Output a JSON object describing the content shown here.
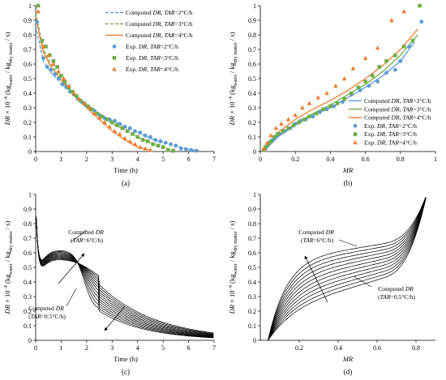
{
  "chart_data": [
    {
      "panel": "(a)",
      "type": "scatter",
      "xlabel": "Time (h)",
      "ylabel": "DR × 10⁻⁴ (kg_water / kg_dry matter / s)",
      "ylabel_parts": {
        "a": "DR",
        "b": " × 10",
        "c": "−4",
        "d": " (kg",
        "e": "water",
        "f": " / kg",
        "g": "dry matter",
        "h": " / s)"
      },
      "xlim": [
        0,
        7
      ],
      "ylim": [
        0,
        1
      ],
      "xticks": [
        "0",
        "1",
        "2",
        "3",
        "4",
        "5",
        "6",
        "7"
      ],
      "yticks": [
        "0",
        "0.1",
        "0.2",
        "0.3",
        "0.4",
        "0.5",
        "0.6",
        "0.7",
        "0.8",
        "0.9",
        "1"
      ],
      "grid": false,
      "legend_position": "top-right",
      "legend": [
        {
          "pre": "Computed ",
          "it1": "DR",
          "mid": ", ",
          "it2": "TAR",
          "post": "=2°C/h",
          "marker": "dashed-line",
          "color": "#5b9bd5"
        },
        {
          "pre": "Computed ",
          "it1": "DR",
          "mid": ", ",
          "it2": "TAR",
          "post": "=3°C/h",
          "marker": "dashed-line",
          "color": "#70ad47"
        },
        {
          "pre": "Computed ",
          "it1": "DR",
          "mid": ", ",
          "it2": "TAR",
          "post": "=4°C/h",
          "marker": "solid-line",
          "color": "#ed7d31"
        },
        {
          "pre": "Exp. ",
          "it1": "DR",
          "mid": ", ",
          "it2": "TAR",
          "post": "=2°C/h",
          "marker": "circle",
          "color": "#5b9bd5"
        },
        {
          "pre": "Exp. ",
          "it1": "DR",
          "mid": ", ",
          "it2": "TAR",
          "post": "=3°C/h",
          "marker": "square",
          "color": "#70ad47"
        },
        {
          "pre": "Exp. ",
          "it1": "DR",
          "mid": ", ",
          "it2": "TAR",
          "post": "=4°C/h",
          "marker": "triangle",
          "color": "#ed7d31"
        }
      ],
      "series": [
        {
          "marker": "circle",
          "color": "#5b9bd5",
          "x": [
            0.05,
            0.3,
            0.45,
            0.6,
            0.75,
            0.9,
            1.05,
            1.2,
            1.35,
            1.5,
            1.65,
            1.8,
            1.95,
            2.1,
            2.3,
            2.5,
            2.7,
            2.9,
            3.1,
            3.3,
            3.5,
            3.7,
            3.9,
            4.1,
            4.3,
            4.5,
            4.7,
            4.9,
            5.1,
            5.3,
            5.5,
            5.7,
            5.9,
            6.1,
            6.3
          ],
          "y": [
            0.89,
            0.64,
            0.58,
            0.56,
            0.53,
            0.5,
            0.46,
            0.44,
            0.41,
            0.39,
            0.36,
            0.34,
            0.32,
            0.3,
            0.28,
            0.25,
            0.23,
            0.22,
            0.21,
            0.19,
            0.17,
            0.16,
            0.14,
            0.13,
            0.11,
            0.1,
            0.08,
            0.07,
            0.06,
            0.05,
            0.04,
            0.02,
            0.015,
            0.01,
            0.005
          ]
        },
        {
          "marker": "square",
          "color": "#70ad47",
          "x": [
            0.1,
            0.25,
            0.4,
            0.55,
            0.7,
            0.85,
            1.0,
            1.15,
            1.3,
            1.45,
            1.6,
            1.75,
            1.9,
            2.05,
            2.2,
            2.4,
            2.6,
            2.8,
            3.0,
            3.2,
            3.4,
            3.6,
            3.8,
            4.0,
            4.2,
            4.4,
            4.6,
            4.8,
            5.0,
            5.2,
            5.4
          ],
          "y": [
            1.0,
            0.76,
            0.72,
            0.66,
            0.62,
            0.58,
            0.52,
            0.48,
            0.44,
            0.41,
            0.38,
            0.35,
            0.33,
            0.31,
            0.29,
            0.26,
            0.24,
            0.22,
            0.2,
            0.18,
            0.16,
            0.14,
            0.12,
            0.1,
            0.08,
            0.07,
            0.05,
            0.04,
            0.03,
            0.01,
            0.005
          ]
        },
        {
          "marker": "triangle",
          "color": "#ed7d31",
          "x": [
            0.1,
            0.3,
            0.5,
            0.7,
            0.9,
            1.1,
            1.3,
            1.5,
            1.7,
            1.9,
            2.1,
            2.3,
            2.5,
            2.7,
            2.9,
            3.1,
            3.3,
            3.5,
            3.7,
            3.9,
            4.1,
            4.3,
            4.5
          ],
          "y": [
            0.96,
            0.72,
            0.66,
            0.6,
            0.55,
            0.5,
            0.45,
            0.4,
            0.36,
            0.33,
            0.3,
            0.26,
            0.23,
            0.2,
            0.17,
            0.14,
            0.12,
            0.09,
            0.07,
            0.05,
            0.03,
            0.02,
            0.01
          ]
        },
        {
          "marker": "dashed-line",
          "color": "#5b9bd5",
          "x": [
            0,
            0.3,
            0.6,
            1.0,
            1.5,
            2.0,
            2.5,
            3.0,
            3.5,
            4.0,
            4.5,
            5.0,
            5.5,
            6.0,
            6.4
          ],
          "y": [
            0.86,
            0.62,
            0.54,
            0.47,
            0.39,
            0.32,
            0.26,
            0.21,
            0.17,
            0.13,
            0.09,
            0.06,
            0.04,
            0.015,
            0.005
          ]
        },
        {
          "marker": "dashed-line",
          "color": "#70ad47",
          "x": [
            0,
            0.3,
            0.6,
            1.0,
            1.5,
            2.0,
            2.5,
            3.0,
            3.5,
            4.0,
            4.5,
            5.0,
            5.4
          ],
          "y": [
            0.95,
            0.7,
            0.6,
            0.5,
            0.4,
            0.32,
            0.25,
            0.19,
            0.15,
            0.1,
            0.06,
            0.03,
            0.01
          ]
        },
        {
          "marker": "solid-line",
          "color": "#ed7d31",
          "x": [
            0,
            0.3,
            0.6,
            1.0,
            1.5,
            2.0,
            2.5,
            3.0,
            3.5,
            4.0,
            4.5
          ],
          "y": [
            0.92,
            0.68,
            0.58,
            0.49,
            0.39,
            0.3,
            0.22,
            0.14,
            0.08,
            0.03,
            0.01
          ]
        }
      ]
    },
    {
      "panel": "(b)",
      "type": "scatter",
      "xlabel": "MR",
      "ylabel": "DR × 10⁻⁴ (kg_water / kg_dry matter / s)",
      "ylabel_parts": {
        "a": "DR",
        "b": " × 10",
        "c": "−4",
        "d": " (kg",
        "e": "water",
        "f": " / kg",
        "g": "dry matter",
        "h": " / s)"
      },
      "xlim": [
        0,
        1
      ],
      "ylim": [
        0,
        1
      ],
      "xticks": [
        "0",
        "0.2",
        "0.4",
        "0.6",
        "0.8",
        "1"
      ],
      "yticks": [
        "0",
        "0.1",
        "0.2",
        "0.3",
        "0.4",
        "0.5",
        "0.6",
        "0.7",
        "0.8",
        "0.9",
        "1"
      ],
      "grid": false,
      "legend_position": "bottom-right",
      "legend": [
        {
          "pre": "Computed ",
          "it1": "DR",
          "mid": ", ",
          "it2": "TAR",
          "post": "=2°C/h",
          "marker": "solid-line",
          "color": "#5b9bd5"
        },
        {
          "pre": "Computed ",
          "it1": "DR",
          "mid": ", ",
          "it2": "TAR",
          "post": "=3°C/h",
          "marker": "solid-line",
          "color": "#70ad47"
        },
        {
          "pre": "Computed ",
          "it1": "DR",
          "mid": ", ",
          "it2": "TAR",
          "post": "=4°C/h",
          "marker": "solid-line",
          "color": "#ed7d31"
        },
        {
          "pre": "Exp. ",
          "it1": "DR",
          "mid": ", ",
          "it2": "TAR",
          "post": "=2°C/h",
          "marker": "circle",
          "color": "#5b9bd5"
        },
        {
          "pre": "Exp. ",
          "it1": "DR",
          "mid": ", ",
          "it2": "TAR",
          "post": "=3°C/h",
          "marker": "square",
          "color": "#70ad47"
        },
        {
          "pre": "Exp. ",
          "it1": "DR",
          "mid": ", ",
          "it2": "TAR",
          "post": "=4°C/h",
          "marker": "triangle",
          "color": "#ed7d31"
        }
      ],
      "series": [
        {
          "marker": "circle",
          "color": "#5b9bd5",
          "x": [
            0.02,
            0.03,
            0.04,
            0.05,
            0.07,
            0.09,
            0.11,
            0.14,
            0.17,
            0.2,
            0.23,
            0.26,
            0.3,
            0.34,
            0.38,
            0.42,
            0.47,
            0.52,
            0.57,
            0.62,
            0.67,
            0.72,
            0.77,
            0.8,
            0.85,
            0.92
          ],
          "y": [
            0.01,
            0.02,
            0.04,
            0.06,
            0.08,
            0.1,
            0.12,
            0.14,
            0.16,
            0.19,
            0.21,
            0.22,
            0.24,
            0.27,
            0.29,
            0.31,
            0.34,
            0.39,
            0.42,
            0.45,
            0.48,
            0.54,
            0.56,
            0.62,
            0.72,
            0.89
          ]
        },
        {
          "marker": "square",
          "color": "#70ad47",
          "x": [
            0.02,
            0.03,
            0.04,
            0.06,
            0.08,
            0.1,
            0.13,
            0.16,
            0.19,
            0.22,
            0.25,
            0.28,
            0.32,
            0.36,
            0.4,
            0.44,
            0.48,
            0.52,
            0.56,
            0.6,
            0.64,
            0.68,
            0.72,
            0.77,
            0.82,
            0.87,
            0.91
          ],
          "y": [
            0.01,
            0.03,
            0.05,
            0.07,
            0.1,
            0.12,
            0.14,
            0.16,
            0.18,
            0.2,
            0.22,
            0.24,
            0.26,
            0.29,
            0.31,
            0.33,
            0.36,
            0.4,
            0.44,
            0.48,
            0.52,
            0.58,
            0.62,
            0.66,
            0.72,
            0.76,
            1.0
          ]
        },
        {
          "marker": "triangle",
          "color": "#ed7d31",
          "x": [
            0.02,
            0.04,
            0.06,
            0.09,
            0.12,
            0.16,
            0.2,
            0.24,
            0.28,
            0.33,
            0.38,
            0.43,
            0.48,
            0.53,
            0.6,
            0.67,
            0.75,
            0.82
          ],
          "y": [
            0.02,
            0.06,
            0.11,
            0.16,
            0.19,
            0.22,
            0.25,
            0.3,
            0.33,
            0.37,
            0.4,
            0.45,
            0.5,
            0.57,
            0.64,
            0.71,
            0.9,
            0.96
          ]
        },
        {
          "marker": "solid-line",
          "color": "#5b9bd5",
          "x": [
            0.02,
            0.1,
            0.2,
            0.3,
            0.4,
            0.5,
            0.6,
            0.7,
            0.8,
            0.88
          ],
          "y": [
            0.0,
            0.1,
            0.18,
            0.25,
            0.3,
            0.37,
            0.44,
            0.52,
            0.62,
            0.75
          ]
        },
        {
          "marker": "solid-line",
          "color": "#70ad47",
          "x": [
            0.02,
            0.1,
            0.2,
            0.3,
            0.4,
            0.5,
            0.6,
            0.7,
            0.8,
            0.9
          ],
          "y": [
            0.0,
            0.11,
            0.19,
            0.26,
            0.32,
            0.39,
            0.46,
            0.55,
            0.66,
            0.8
          ]
        },
        {
          "marker": "solid-line",
          "color": "#ed7d31",
          "x": [
            0.02,
            0.1,
            0.2,
            0.3,
            0.4,
            0.5,
            0.6,
            0.7,
            0.8,
            0.9
          ],
          "y": [
            0.0,
            0.13,
            0.22,
            0.29,
            0.35,
            0.42,
            0.5,
            0.59,
            0.7,
            0.84
          ]
        }
      ]
    },
    {
      "panel": "(c)",
      "type": "line",
      "xlabel": "Time (h)",
      "ylabel": "DR × 10⁻⁴ (kg_water / kg_dry matter / s)",
      "ylabel_parts": {
        "a": "DR",
        "b": " × 10",
        "c": "−4",
        "d": " (kg",
        "e": "water",
        "f": " / kg",
        "g": "dry matter",
        "h": " / s)"
      },
      "xlim": [
        0,
        7
      ],
      "ylim": [
        0,
        1
      ],
      "xticks": [
        "0",
        "1",
        "2",
        "3",
        "4",
        "5",
        "6",
        "7"
      ],
      "yticks": [
        "0",
        "0.1",
        "0.2",
        "0.3",
        "0.4",
        "0.5",
        "0.6",
        "0.7",
        "0.8",
        "0.9",
        "1"
      ],
      "grid": false,
      "family": {
        "param_min": 0.5,
        "param_max": 6.0,
        "count": 12
      },
      "annotations": [
        {
          "a": "Computed ",
          "b": "DR",
          "c": "(",
          "d": "TAR",
          "e": "=6°C/h)"
        },
        {
          "a": "Computed ",
          "b": "DR",
          "c": "(",
          "d": "TAR",
          "e": "=0.5°C/h)"
        }
      ]
    },
    {
      "panel": "(d)",
      "type": "line",
      "xlabel": "MR",
      "ylabel": "DR × 10⁻⁴ (kg_water / kg_dry matter / s)",
      "ylabel_parts": {
        "a": "DR",
        "b": " × 10",
        "c": "−4",
        "d": " (kg",
        "e": "water",
        "f": " / kg",
        "g": "dry matter",
        "h": " / s)"
      },
      "xlim": [
        0,
        0.9
      ],
      "ylim": [
        0,
        1
      ],
      "xticks": [
        "0.2",
        "0.4",
        "0.6",
        "0.8"
      ],
      "yticks": [
        "0",
        "0.1",
        "0.2",
        "0.3",
        "0.4",
        "0.5",
        "0.6",
        "0.7",
        "0.8",
        "0.9",
        "1"
      ],
      "grid": false,
      "family": {
        "param_min": 0.5,
        "param_max": 6.0,
        "count": 12
      },
      "annotations": [
        {
          "a": "Computed ",
          "b": "DR",
          "c": "(",
          "d": "TAR",
          "e": "=6°C/h)"
        },
        {
          "a": "Computed ",
          "b": "DR",
          "c": "(",
          "d": "TAR",
          "e": "=0.5°C/h)"
        }
      ]
    }
  ]
}
